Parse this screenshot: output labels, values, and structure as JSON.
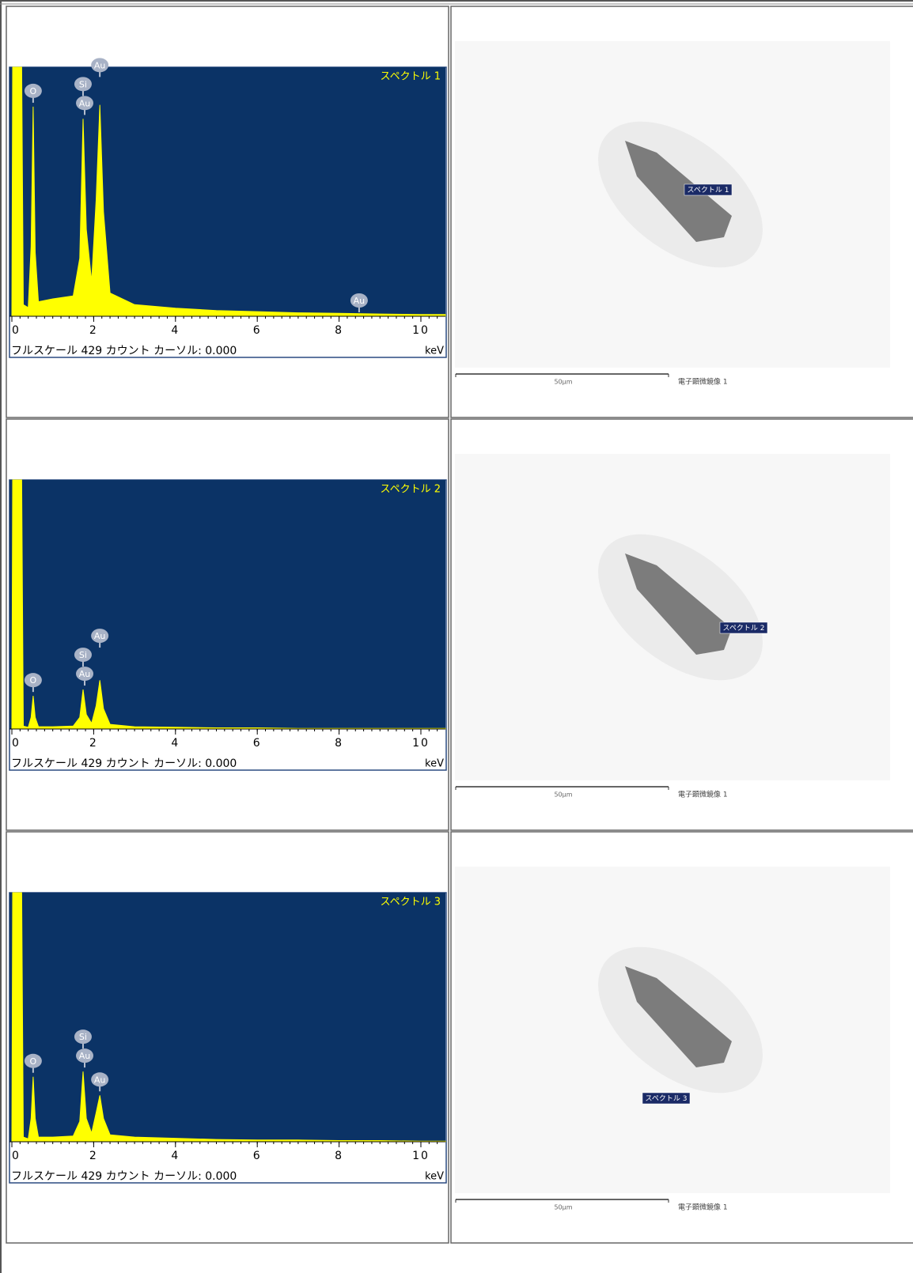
{
  "chart_data": [
    {
      "type": "area",
      "title": "スペクトル 1",
      "footer": "フルスケール 429 カウント カーソル: 0.000",
      "x_unit": "keV",
      "color": "#ffff00",
      "background": "#0b3366",
      "xlim": [
        0,
        10.6
      ],
      "xticks": [
        0,
        2,
        4,
        6,
        8,
        10
      ],
      "ylim": [
        0,
        429
      ],
      "x": [
        0,
        0.02,
        0.24,
        0.28,
        0.4,
        0.47,
        0.52,
        0.57,
        0.65,
        1.0,
        1.5,
        1.66,
        1.74,
        1.82,
        1.95,
        2.06,
        2.15,
        2.24,
        2.4,
        3,
        4,
        5,
        6,
        7,
        8,
        9,
        10,
        10.6
      ],
      "values": [
        0,
        429,
        429,
        20,
        15,
        120,
        361,
        110,
        25,
        30,
        35,
        100,
        340,
        150,
        60,
        200,
        364,
        180,
        40,
        20,
        14,
        10,
        8,
        6,
        5,
        4,
        3,
        3
      ],
      "peak_labels": [
        {
          "label": "O",
          "x": 0.52
        },
        {
          "label": "Au",
          "x": 1.78
        },
        {
          "label": "Si",
          "x": 1.74
        },
        {
          "label": "Au",
          "x": 2.15
        },
        {
          "label": "Au",
          "x": 8.49
        }
      ]
    },
    {
      "type": "area",
      "title": "スペクトル 2",
      "footer": "フルスケール 429 カウント カーソル: 0.000",
      "x_unit": "keV",
      "color": "#ffff00",
      "background": "#0b3366",
      "xlim": [
        0,
        10.6
      ],
      "xticks": [
        0,
        2,
        4,
        6,
        8,
        10
      ],
      "ylim": [
        0,
        429
      ],
      "x": [
        0,
        0.02,
        0.24,
        0.28,
        0.4,
        0.47,
        0.52,
        0.57,
        0.65,
        1.0,
        1.5,
        1.66,
        1.74,
        1.82,
        1.95,
        2.06,
        2.15,
        2.24,
        2.4,
        3,
        4,
        5,
        6,
        7,
        8,
        9,
        10,
        10.6
      ],
      "values": [
        0,
        429,
        429,
        5,
        3,
        20,
        57,
        20,
        4,
        4,
        5,
        20,
        68,
        25,
        10,
        40,
        84,
        35,
        8,
        4,
        3,
        2,
        2,
        1,
        1,
        1,
        1,
        1
      ],
      "peak_labels": [
        {
          "label": "O",
          "x": 0.52
        },
        {
          "label": "Au",
          "x": 1.78
        },
        {
          "label": "Si",
          "x": 1.74
        },
        {
          "label": "Au",
          "x": 2.15
        }
      ]
    },
    {
      "type": "area",
      "title": "スペクトル 3",
      "footer": "フルスケール 429 カウント カーソル: 0.000",
      "x_unit": "keV",
      "color": "#ffff00",
      "background": "#0b3366",
      "xlim": [
        0,
        10.6
      ],
      "xticks": [
        0,
        2,
        4,
        6,
        8,
        10
      ],
      "ylim": [
        0,
        429
      ],
      "x": [
        0,
        0.02,
        0.24,
        0.28,
        0.4,
        0.47,
        0.52,
        0.57,
        0.65,
        1.0,
        1.5,
        1.66,
        1.74,
        1.82,
        1.95,
        2.06,
        2.15,
        2.24,
        2.4,
        3,
        4,
        5,
        6,
        7,
        8,
        9,
        10,
        10.6
      ],
      "values": [
        0,
        429,
        429,
        8,
        5,
        40,
        112,
        40,
        8,
        8,
        10,
        35,
        121,
        40,
        15,
        50,
        80,
        40,
        12,
        8,
        6,
        4,
        3,
        3,
        2,
        2,
        1,
        1
      ],
      "peak_labels": [
        {
          "label": "O",
          "x": 0.52
        },
        {
          "label": "Au",
          "x": 1.78
        },
        {
          "label": "Si",
          "x": 1.74
        },
        {
          "label": "Au",
          "x": 2.15
        }
      ]
    }
  ],
  "images": [
    {
      "spot_label": "スペクトル 1",
      "scale_label": "50µm",
      "caption": "電子顕微鏡像 1"
    },
    {
      "spot_label": "スペクトル 2",
      "scale_label": "50µm",
      "caption": "電子顕微鏡像 1"
    },
    {
      "spot_label": "スペクトル 3",
      "scale_label": "50µm",
      "caption": "電子顕微鏡像 1"
    }
  ]
}
